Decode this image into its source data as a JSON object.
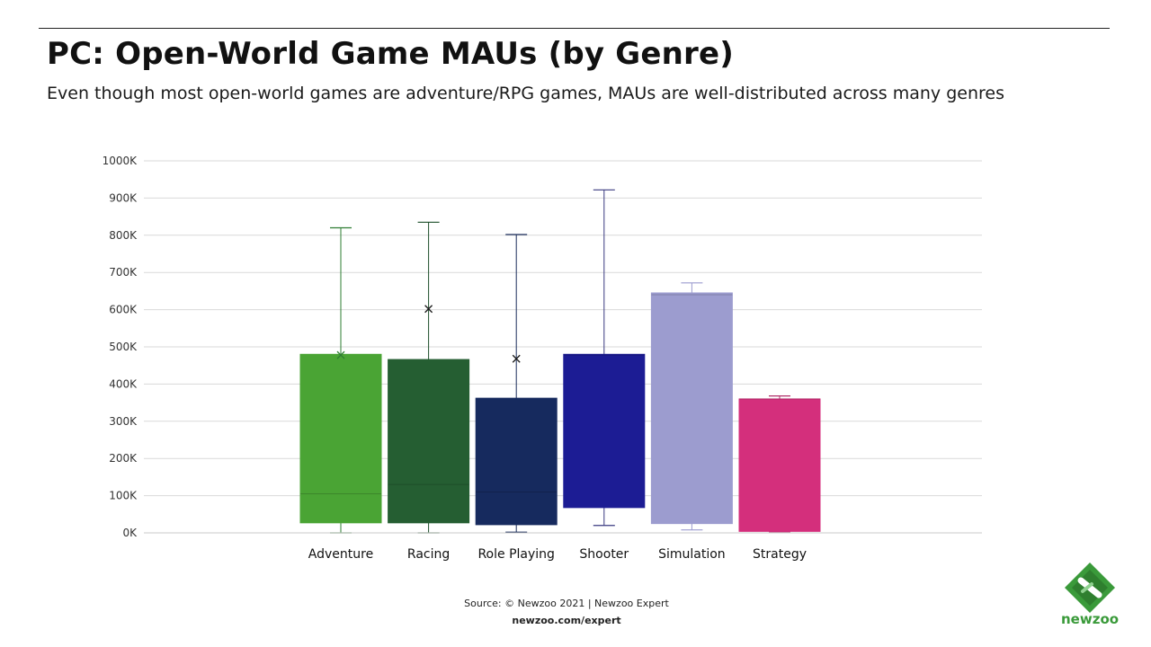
{
  "header": {
    "title": "PC: Open-World Game MAUs (by Genre)",
    "subtitle": "Even though most open-world games are adventure/RPG games, MAUs are well-distributed across many genres"
  },
  "footer": {
    "source": "Source: © Newzoo 2021 | Newzoo Expert",
    "url": "newzoo.com/expert"
  },
  "logo": {
    "text": "newzoo",
    "icon": "newzoo-logo-icon",
    "color": "#3a9a3a"
  },
  "chart_data": {
    "type": "box",
    "title": "PC: Open-World Game MAUs (by Genre)",
    "ylim": [
      0,
      1000
    ],
    "yunit": "K",
    "y_ticks": [
      {
        "value": 0,
        "label": "0K"
      },
      {
        "value": 100,
        "label": "100K"
      },
      {
        "value": 200,
        "label": "200K"
      },
      {
        "value": 300,
        "label": "300K"
      },
      {
        "value": 400,
        "label": "400K"
      },
      {
        "value": 500,
        "label": "500K"
      },
      {
        "value": 600,
        "label": "600K"
      },
      {
        "value": 700,
        "label": "700K"
      },
      {
        "value": 800,
        "label": "800K"
      },
      {
        "value": 900,
        "label": "900K"
      },
      {
        "value": 1000,
        "label": "1000K"
      }
    ],
    "grid": true,
    "categories": [
      "Adventure",
      "Racing",
      "Role Playing",
      "Shooter",
      "Simulation",
      "Strategy"
    ],
    "series": [
      {
        "category": "Adventure",
        "color": "#4aa434",
        "whisker_color": "#2e7d32",
        "min": 0,
        "q1": 27,
        "median": 105,
        "q3": 480,
        "max": 820,
        "mean": 478
      },
      {
        "category": "Racing",
        "color": "#255e32",
        "whisker_color": "#1d4f2a",
        "min": 0,
        "q1": 27,
        "median": 130,
        "q3": 466,
        "max": 835,
        "mean": 602
      },
      {
        "category": "Role Playing",
        "color": "#162a5e",
        "whisker_color": "#1c2f5c",
        "min": 2,
        "q1": 22,
        "median": 110,
        "q3": 362,
        "max": 802,
        "mean": 468
      },
      {
        "category": "Shooter",
        "color": "#1c1c94",
        "whisker_color": "#3a3a80",
        "min": 20,
        "q1": 68,
        "median": 478,
        "q3": 480,
        "max": 922,
        "mean": null
      },
      {
        "category": "Simulation",
        "color": "#9c9ccf",
        "whisker_color": "#9c9ccf",
        "min": 8,
        "q1": 25,
        "median": 640,
        "q3": 645,
        "max": 672,
        "mean": null
      },
      {
        "category": "Strategy",
        "color": "#d42f7c",
        "whisker_color": "#b0306a",
        "min": 3,
        "q1": 4,
        "median": 360,
        "q3": 360,
        "max": 368,
        "mean": null
      }
    ]
  }
}
